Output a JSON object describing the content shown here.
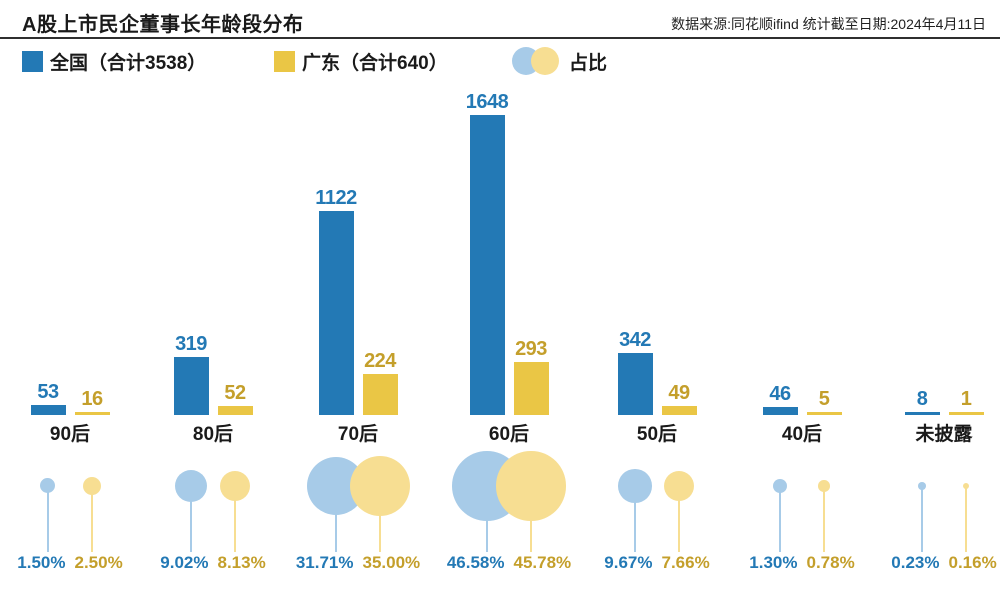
{
  "header": {
    "title": "A股上市民企董事长年龄段分布",
    "source": "数据来源:同花顺ifind  统计截至日期:2024年4月11日"
  },
  "legend": {
    "national_label": "全国（合计3538）",
    "guangdong_label": "广东（合计640）",
    "ratio_label": "占比"
  },
  "colors": {
    "national_bar": "#2379B5",
    "national_text": "#2379B5",
    "guangdong_bar": "#EAC645",
    "guangdong_text": "#C49F2B",
    "national_bubble": "#A7CBE8",
    "guangdong_bubble": "#F7DE92",
    "title_text": "#1a1a1a"
  },
  "chart_data": {
    "type": "bar",
    "title": "A股上市民企董事长年龄段分布",
    "categories": [
      "90后",
      "80后",
      "70后",
      "60后",
      "50后",
      "40后",
      "未披露"
    ],
    "series": [
      {
        "name": "全国（合计3538）",
        "total": 3538,
        "values": [
          53,
          319,
          1122,
          1648,
          342,
          46,
          8
        ]
      },
      {
        "name": "广东（合计640）",
        "total": 640,
        "values": [
          16,
          52,
          224,
          293,
          49,
          5,
          1
        ]
      }
    ],
    "bubble_series": [
      {
        "name": "全国占比",
        "values_pct": [
          1.5,
          9.02,
          31.71,
          46.58,
          9.67,
          1.3,
          0.23
        ]
      },
      {
        "name": "广东占比",
        "values_pct": [
          2.5,
          8.13,
          35.0,
          45.78,
          7.66,
          0.78,
          0.16
        ]
      }
    ],
    "percent_labels": {
      "national": [
        "1.50%",
        "9.02%",
        "31.71%",
        "46.58%",
        "9.67%",
        "1.30%",
        "0.23%"
      ],
      "guangdong": [
        "2.50%",
        "8.13%",
        "35.00%",
        "45.78%",
        "7.66%",
        "0.78%",
        "0.16%"
      ]
    },
    "value_axis_max": 1648,
    "grid": false,
    "legend_position": "top"
  }
}
